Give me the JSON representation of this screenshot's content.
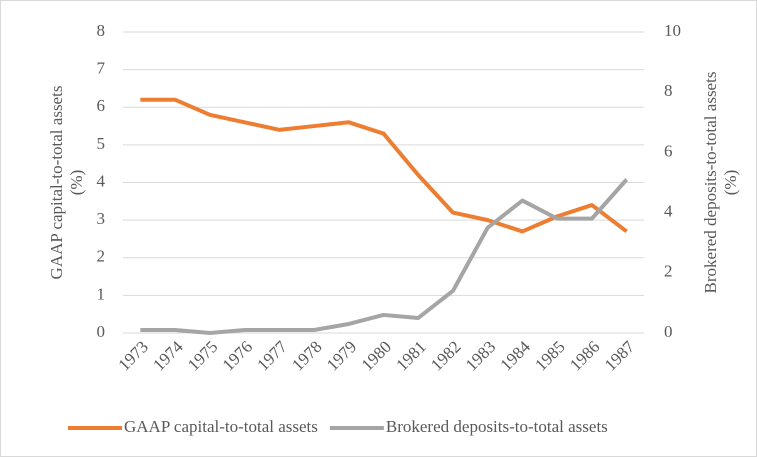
{
  "chart_data": {
    "type": "line",
    "categories": [
      "1973",
      "1974",
      "1975",
      "1976",
      "1977",
      "1978",
      "1979",
      "1980",
      "1981",
      "1982",
      "1983",
      "1984",
      "1985",
      "1986",
      "1987"
    ],
    "series": [
      {
        "name": "GAAP capital-to-total assets",
        "color": "#ed7d31",
        "values": [
          6.2,
          6.2,
          5.8,
          5.6,
          5.4,
          5.5,
          5.6,
          5.3,
          4.2,
          3.2,
          3.0,
          2.7,
          3.1,
          3.4,
          2.7
        ]
      },
      {
        "name": "Brokered deposits-to-total assets",
        "color": "#a5a5a5",
        "axis": "y2",
        "values": [
          0.1,
          0.1,
          0,
          0.1,
          0.1,
          0.1,
          0.3,
          0.6,
          0.5,
          1.4,
          3.5,
          4.4,
          3.8,
          3.8,
          5.1
        ]
      }
    ],
    "ylabel": [
      "GAAP capital-to-total assets",
      "(%)"
    ],
    "y2label": [
      "Brokered deposits-to-total assets",
      "(%)"
    ],
    "ylim": [
      0,
      8
    ],
    "yticks": [
      0,
      1,
      2,
      3,
      4,
      5,
      6,
      7,
      8
    ],
    "y2lim": [
      0,
      10
    ],
    "y2ticks": [
      0,
      2,
      4,
      6,
      8,
      10
    ],
    "grid": true,
    "legend": "bottom"
  }
}
